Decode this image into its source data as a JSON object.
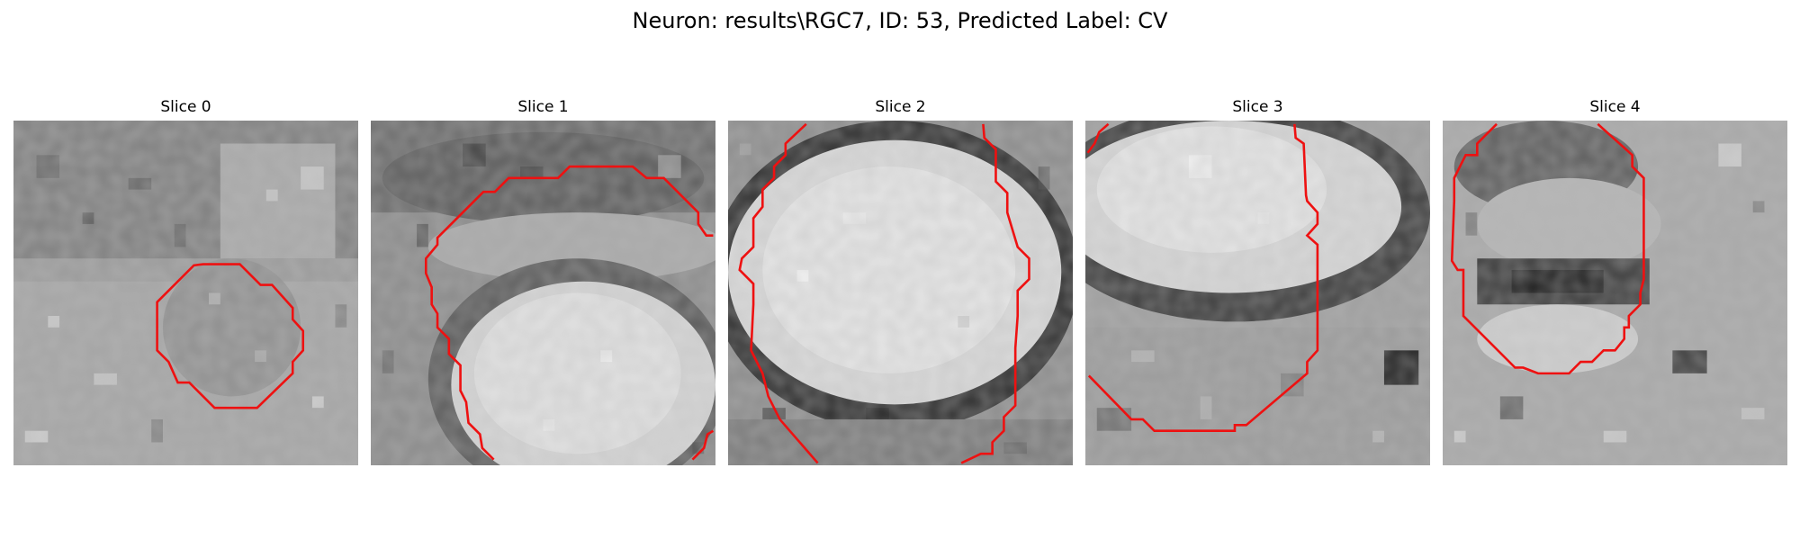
{
  "figure": {
    "title": "Neuron: results\\RGC7, ID: 53, Predicted Label: CV"
  },
  "panels": [
    {
      "title": "Slice 0",
      "image": "grayscale microscopy slice with small roughly circular cell in lower center",
      "contour_color": "#ee1111"
    },
    {
      "title": "Slice 1",
      "image": "grayscale microscopy slice with large bright cell body in lower right",
      "contour_color": "#ee1111"
    },
    {
      "title": "Slice 2",
      "image": "grayscale microscopy slice with large bright oval cell body ringed by dark membrane",
      "contour_color": "#ee1111"
    },
    {
      "title": "Slice 3",
      "image": "grayscale microscopy slice with bright oval cell body in upper half",
      "contour_color": "#ee1111"
    },
    {
      "title": "Slice 4",
      "image": "grayscale microscopy slice with dark band through a cell outline",
      "contour_color": "#ee1111"
    }
  ]
}
